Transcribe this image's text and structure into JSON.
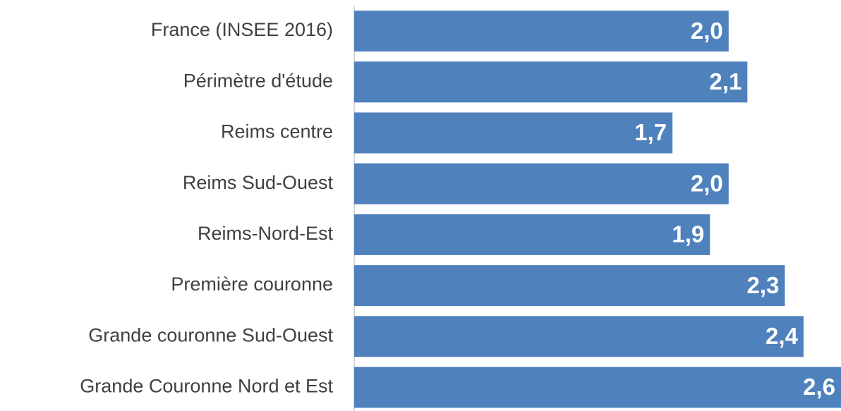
{
  "chart_data": {
    "type": "barh",
    "categories": [
      "France (INSEE 2016)",
      "Périmètre d'étude",
      "Reims centre",
      "Reims Sud-Ouest",
      "Reims-Nord-Est",
      "Première couronne",
      "Grande couronne Sud-Ouest",
      "Grande Couronne Nord et Est"
    ],
    "values": [
      2.0,
      2.1,
      1.7,
      2.0,
      1.9,
      2.3,
      2.4,
      2.6
    ],
    "value_labels": [
      "2,0",
      "2,1",
      "1,7",
      "2,0",
      "1,9",
      "2,3",
      "2,4",
      "2,6"
    ],
    "color": "#4f81bd",
    "xlim": [
      0,
      2.6
    ]
  }
}
